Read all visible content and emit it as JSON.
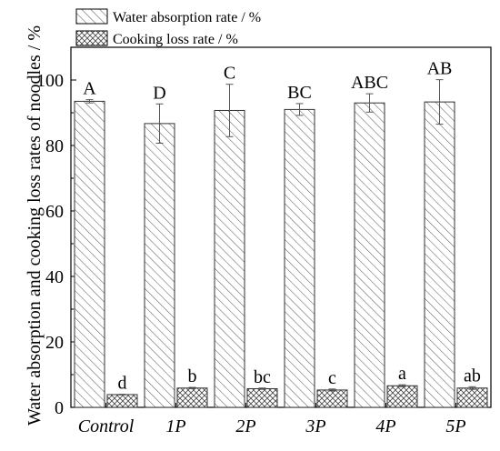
{
  "chart_data": {
    "type": "bar",
    "ylabel": "Water absorption and cooking loss rates of noodles / %",
    "xlabel": "",
    "ylim": [
      0,
      110
    ],
    "yticks": [
      0,
      20,
      40,
      60,
      80,
      100
    ],
    "grid": false,
    "legend_position": "top-left",
    "categories": [
      "Control",
      "1P",
      "2P",
      "3P",
      "4P",
      "5P"
    ],
    "series": [
      {
        "name": "Water absorption rate / %",
        "pattern": "diagonal-hatch",
        "values": [
          93.5,
          86.7,
          90.7,
          91.0,
          93.0,
          93.3
        ],
        "errors": [
          0.5,
          6.0,
          8.0,
          1.8,
          2.8,
          6.8
        ],
        "labels": [
          "A",
          "D",
          "C",
          "BC",
          "ABC",
          "AB"
        ]
      },
      {
        "name": "Cooking loss rate / %",
        "pattern": "crosshatch",
        "values": [
          3.9,
          5.9,
          5.7,
          5.3,
          6.6,
          5.9
        ],
        "errors": [
          0.1,
          0.2,
          0.2,
          0.3,
          0.3,
          0.4
        ],
        "labels": [
          "d",
          "b",
          "bc",
          "c",
          "a",
          "ab"
        ]
      }
    ]
  }
}
